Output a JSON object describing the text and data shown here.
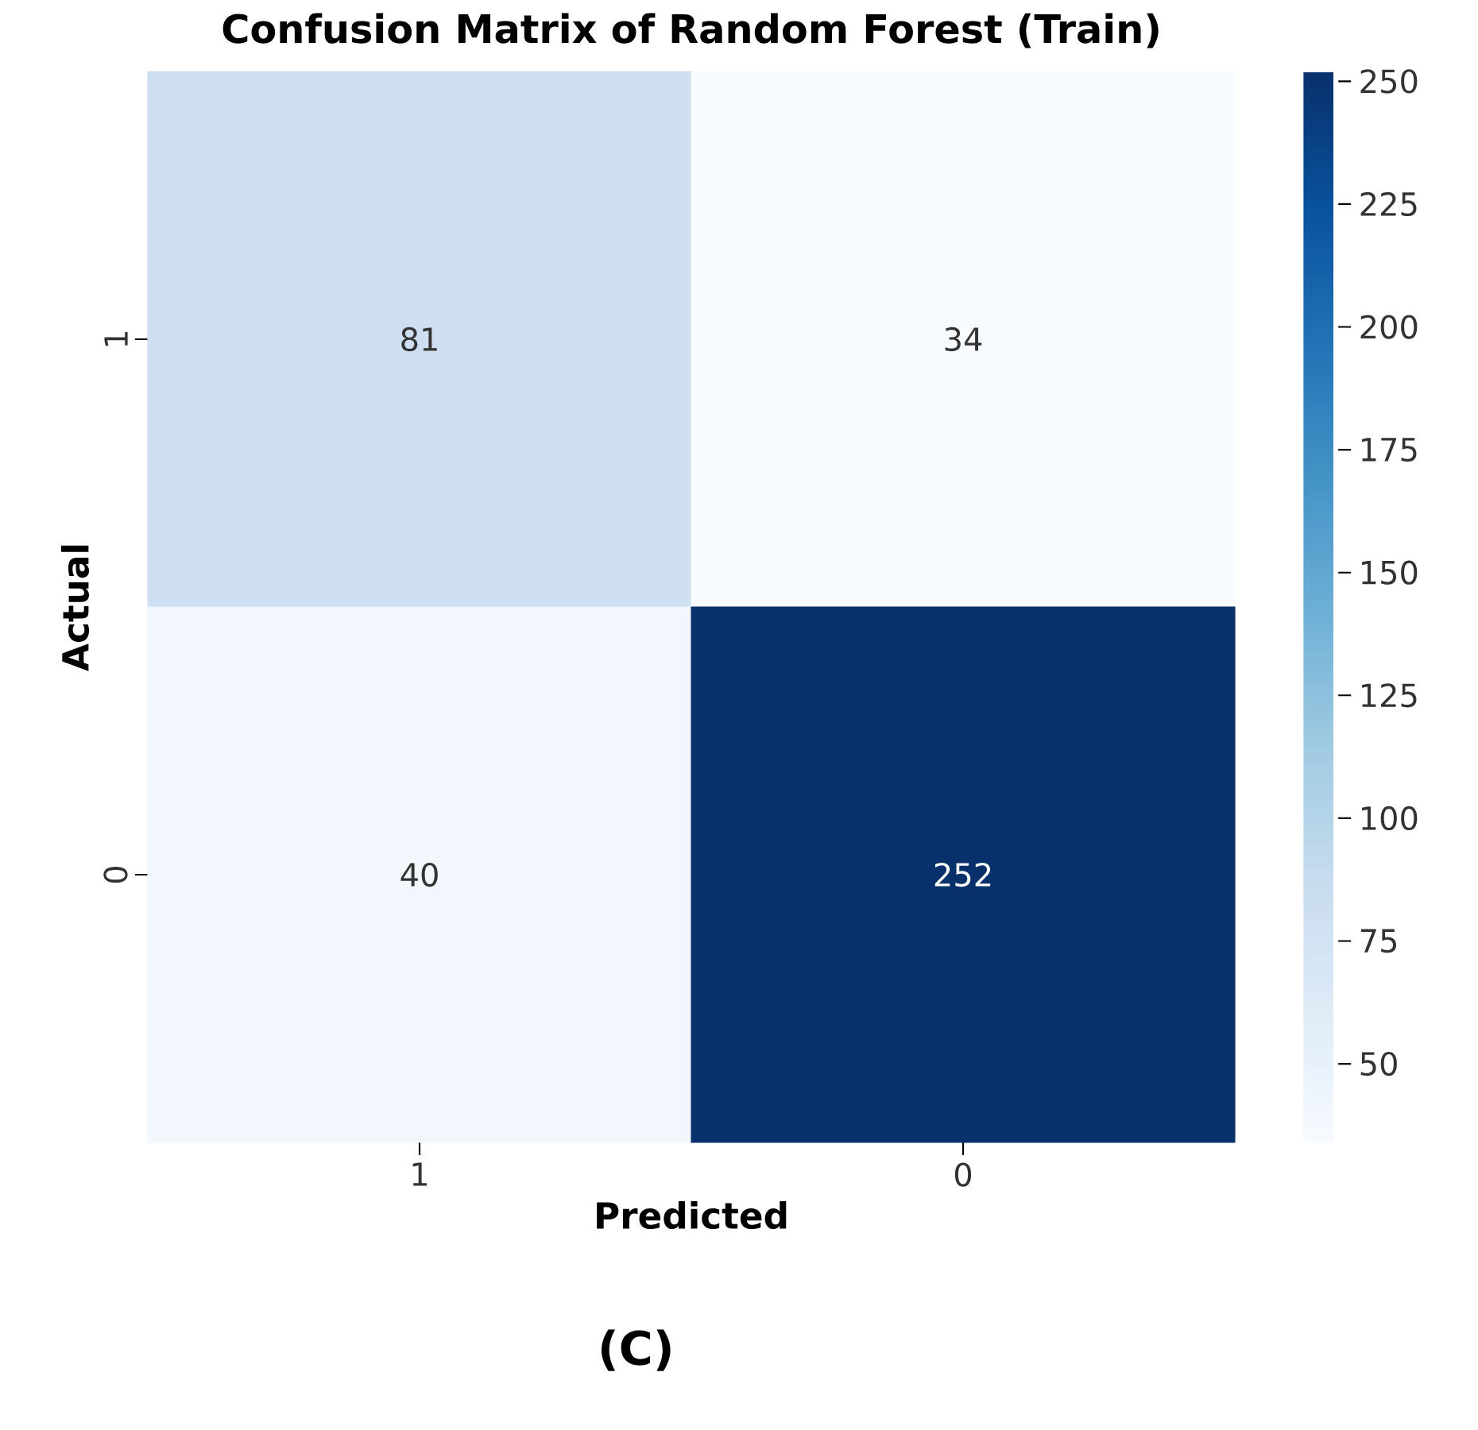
{
  "chart_data": {
    "type": "heatmap",
    "title": "Confusion Matrix of Random Forest (Train)",
    "xlabel": "Predicted",
    "ylabel": "Actual",
    "categories": [
      "1",
      "0"
    ],
    "y_categories": [
      "1",
      "0"
    ],
    "cells": [
      [
        81,
        34
      ],
      [
        40,
        252
      ]
    ],
    "data_labels": true,
    "clim": [
      34,
      252
    ],
    "cticks": [
      50,
      75,
      100,
      125,
      150,
      175,
      200,
      225,
      250
    ],
    "annotations": [
      "(C)"
    ]
  }
}
